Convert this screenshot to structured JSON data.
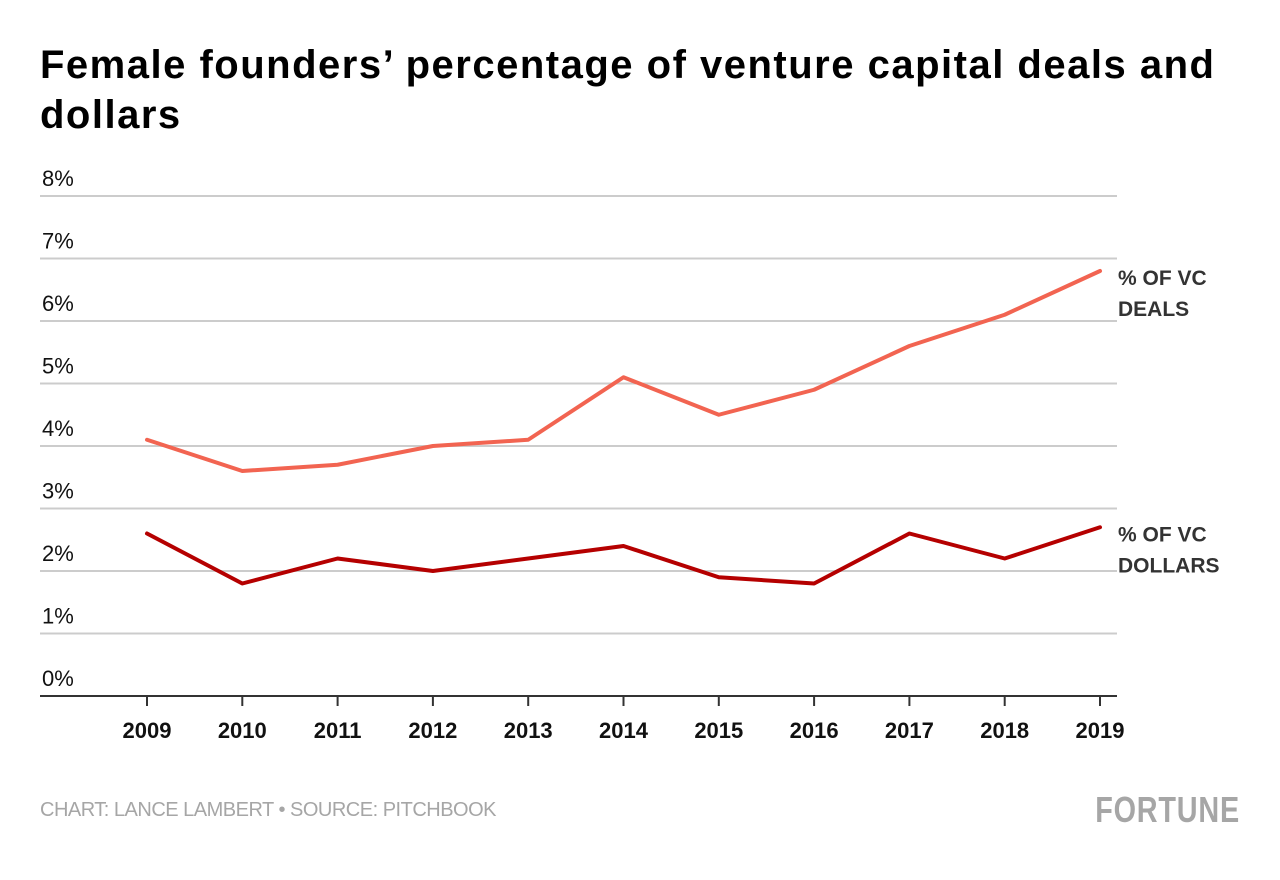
{
  "header": {
    "title": "Female founders’ percentage of venture capital deals and dollars"
  },
  "footer": {
    "credit": "CHART: LANCE LAMBERT • SOURCE: PITCHBOOK",
    "logo": "FORTUNE"
  },
  "chart_data": {
    "type": "line",
    "title": "Female founders’ percentage of venture capital deals and dollars",
    "xlabel": "",
    "ylabel": "",
    "x": [
      "2009",
      "2010",
      "2011",
      "2012",
      "2013",
      "2014",
      "2015",
      "2016",
      "2017",
      "2018",
      "2019"
    ],
    "ylim": [
      0,
      8
    ],
    "yticks": [
      0,
      1,
      2,
      3,
      4,
      5,
      6,
      7,
      8
    ],
    "ytick_labels": [
      "0%",
      "1%",
      "2%",
      "3%",
      "4%",
      "5%",
      "6%",
      "7%",
      "8%"
    ],
    "grid": true,
    "legend": "direct labels at right end of lines",
    "series": [
      {
        "name": "% OF VC DEALS",
        "label_lines": [
          "% OF VC",
          "DEALS"
        ],
        "color": "#f26451",
        "values": [
          4.1,
          3.6,
          3.7,
          4.0,
          4.1,
          5.1,
          4.5,
          4.9,
          5.6,
          6.1,
          6.8
        ]
      },
      {
        "name": "% OF VC DOLLARS",
        "label_lines": [
          "% OF VC",
          "DOLLARS"
        ],
        "color": "#b50000",
        "values": [
          2.6,
          1.8,
          2.2,
          2.0,
          2.2,
          2.4,
          1.9,
          1.8,
          2.6,
          2.2,
          2.7
        ]
      }
    ]
  }
}
